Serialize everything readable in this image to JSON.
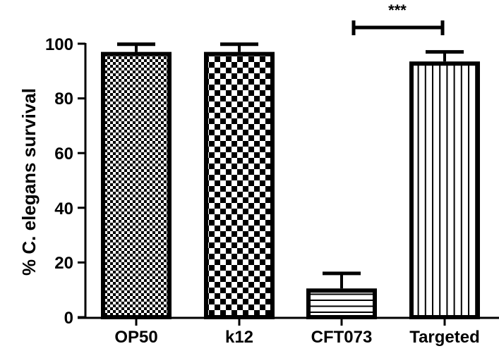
{
  "chart_data": {
    "type": "bar",
    "title": "",
    "xlabel": "",
    "ylabel": "% C. elegans survival",
    "ylim": [
      0,
      100
    ],
    "yticks": [
      0,
      20,
      40,
      60,
      80,
      100
    ],
    "grid": false,
    "legend": null,
    "categories": [
      "OP50",
      "k12",
      "CFT073",
      "Targeted"
    ],
    "values": [
      97,
      97,
      10.5,
      93.5
    ],
    "error_upper": [
      2.8,
      2.8,
      5.5,
      3.5
    ],
    "patterns": [
      "fine-checker",
      "coarse-checker",
      "horizontal-lines",
      "vertical-lines"
    ],
    "annotations": [
      {
        "type": "significance-bracket",
        "from": "CFT073",
        "to": "Targeted",
        "label": "***"
      }
    ]
  },
  "axis": {
    "y_title": "% C. elegans survival",
    "y_tick_labels": [
      "0",
      "20",
      "40",
      "60",
      "80",
      "100"
    ]
  },
  "categories_labels": [
    "OP50",
    "k12",
    "CFT073",
    "Targeted"
  ],
  "significance_label": "***"
}
